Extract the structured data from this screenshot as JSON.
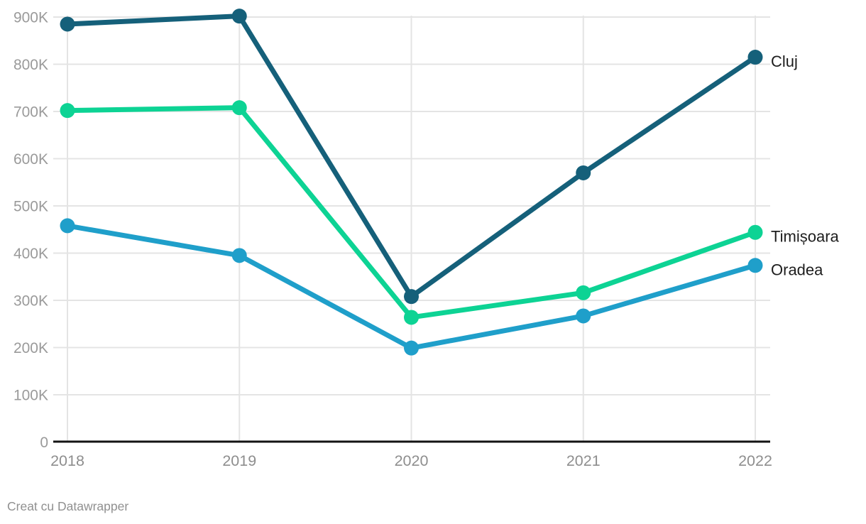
{
  "chart_data": {
    "type": "line",
    "x": [
      "2018",
      "2019",
      "2020",
      "2021",
      "2022"
    ],
    "series": [
      {
        "id": "cluj",
        "name": "Cluj",
        "color": "#15607a",
        "values": [
          885000,
          902000,
          308000,
          570000,
          815000
        ]
      },
      {
        "id": "timisoara",
        "name": "Timișoara",
        "color": "#0dd394",
        "values": [
          702000,
          708000,
          264000,
          316000,
          444000
        ]
      },
      {
        "id": "oradea",
        "name": "Oradea",
        "color": "#1f9fca",
        "values": [
          458000,
          395000,
          199000,
          267000,
          374000
        ]
      }
    ],
    "ylim": [
      0,
      900000
    ],
    "ytick_step": 100000,
    "ytick_labels": [
      "0",
      "100K",
      "200K",
      "300K",
      "400K",
      "500K",
      "600K",
      "700K",
      "800K",
      "900K"
    ],
    "grid": true,
    "legend_position": "right-of-line-end",
    "title": "",
    "xlabel": "",
    "ylabel": ""
  },
  "footer": {
    "credit": "Creat cu Datawrapper"
  },
  "colors": {
    "background": "#ffffff",
    "grid": "#e4e4e4",
    "axis_line": "#131313",
    "tick_text": "#9a9a9a",
    "series_label_text": "#1d1d1d"
  }
}
